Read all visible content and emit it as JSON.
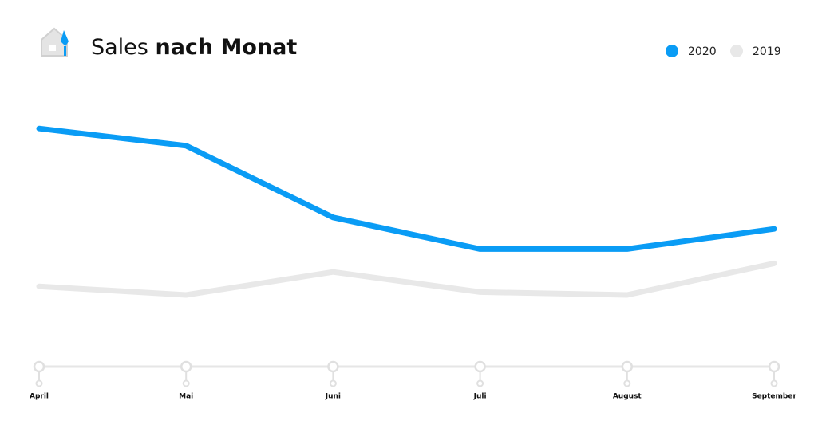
{
  "chart_data": {
    "type": "line",
    "title": "Sales",
    "title_bold": "nach Monat",
    "categories": [
      "April",
      "Mai",
      "Juni",
      "Juli",
      "August",
      "September"
    ],
    "series": [
      {
        "name": "2020",
        "color": "#0a9cf5",
        "values": [
          83,
          77,
          52,
          41,
          41,
          48
        ]
      },
      {
        "name": "2019",
        "color": "#e8e8e8",
        "values": [
          28,
          25,
          33,
          26,
          25,
          36
        ]
      }
    ],
    "ylim": [
      0,
      100
    ],
    "legend": "top-right"
  }
}
